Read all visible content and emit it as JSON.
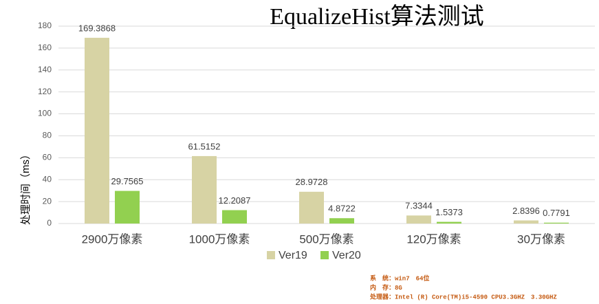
{
  "chart_data": {
    "type": "bar",
    "title": "EqualizeHist算法测试",
    "y_label": "处理时间（ms）",
    "categories": [
      "2900万像素",
      "1000万像素",
      "500万像素",
      "120万像素",
      "30万像素"
    ],
    "series": [
      {
        "name": "Ver19",
        "color": "#d7d3a4",
        "values": [
          169.3868,
          61.5152,
          28.9728,
          7.3344,
          2.8396
        ]
      },
      {
        "name": "Ver20",
        "color": "#92d050",
        "values": [
          29.7565,
          12.2087,
          4.8722,
          1.5373,
          0.7791
        ]
      }
    ],
    "ylim": [
      0,
      180
    ],
    "yticks": [
      0,
      20,
      40,
      60,
      80,
      100,
      120,
      140,
      160,
      180
    ],
    "grid": true,
    "legend": "bottom",
    "notes": [
      "系　统：win7　64位",
      "内　存：8G",
      "处理器：Intel (R) Core(TM)i5-4590 CPU3.3GHZ　3.30GHZ"
    ]
  }
}
